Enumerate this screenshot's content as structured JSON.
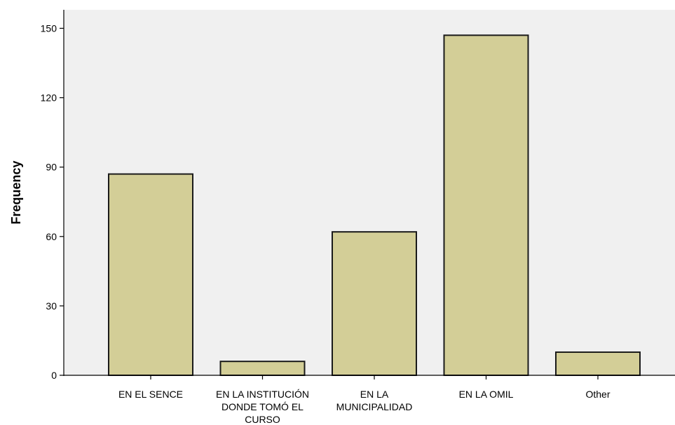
{
  "chart_data": {
    "type": "bar",
    "title": "",
    "xlabel": "",
    "ylabel": "Frequency",
    "ylim": [
      0,
      158
    ],
    "yticks": [
      0,
      30,
      60,
      90,
      120,
      150
    ],
    "grid": false,
    "categories": [
      [
        "EN EL SENCE"
      ],
      [
        "EN LA INSTITUCIÓN",
        "DONDE TOMÓ EL",
        "CURSO"
      ],
      [
        "EN LA",
        "MUNICIPALIDAD"
      ],
      [
        "EN LA OMIL"
      ],
      [
        "Other"
      ]
    ],
    "values": [
      87,
      6,
      62,
      147,
      10
    ],
    "colors": {
      "plot_background": "#f0f0f0",
      "bar_fill": "#d3ce97",
      "bar_stroke": "#1a1a1a"
    }
  }
}
